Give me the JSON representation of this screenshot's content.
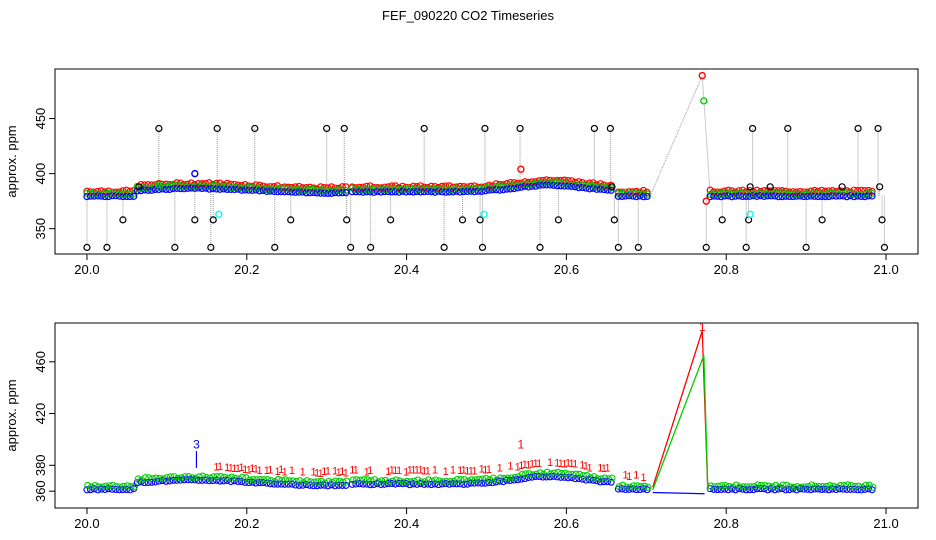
{
  "figure": {
    "title": "FEF_090220  CO2 Timeseries"
  },
  "chart_data": [
    {
      "type": "scatter",
      "title": "",
      "xlabel": "",
      "ylabel": "approx. ppm",
      "xlim": [
        19.96,
        21.04
      ],
      "ylim": [
        327,
        495
      ],
      "xticks": [
        20.0,
        20.2,
        20.4,
        20.6,
        20.8,
        21.0
      ],
      "xtick_labels": [
        "20.0",
        "20.2",
        "20.4",
        "20.6",
        "20.8",
        "21.0"
      ],
      "yticks": [
        350,
        400,
        450
      ],
      "ytick_labels": [
        "350",
        "400",
        "450"
      ],
      "grid": false,
      "series": [
        {
          "color": "#000000",
          "marker": "circle",
          "style": "points+gray-lines",
          "role": "black",
          "spikes": [
            [
              20.0,
              333
            ],
            [
              20.025,
              333
            ],
            [
              20.045,
              358
            ],
            [
              20.065,
              388
            ],
            [
              20.09,
              441
            ],
            [
              20.11,
              333
            ],
            [
              20.135,
              358
            ],
            [
              20.155,
              333
            ],
            [
              20.158,
              358
            ],
            [
              20.163,
              441
            ],
            [
              20.21,
              441
            ],
            [
              20.235,
              333
            ],
            [
              20.255,
              358
            ],
            [
              20.3,
              441
            ],
            [
              20.322,
              441
            ],
            [
              20.325,
              358
            ],
            [
              20.33,
              333
            ],
            [
              20.355,
              333
            ],
            [
              20.38,
              358
            ],
            [
              20.422,
              441
            ],
            [
              20.447,
              333
            ],
            [
              20.47,
              358
            ],
            [
              20.492,
              358
            ],
            [
              20.495,
              333
            ],
            [
              20.498,
              441
            ],
            [
              20.542,
              441
            ],
            [
              20.567,
              333
            ],
            [
              20.59,
              358
            ],
            [
              20.635,
              441
            ],
            [
              20.655,
              441
            ],
            [
              20.657,
              388
            ],
            [
              20.66,
              358
            ],
            [
              20.665,
              333
            ],
            [
              20.69,
              333
            ],
            [
              20.775,
              333
            ],
            [
              20.795,
              358
            ],
            [
              20.825,
              333
            ],
            [
              20.828,
              358
            ],
            [
              20.83,
              388
            ],
            [
              20.833,
              441
            ],
            [
              20.855,
              388
            ],
            [
              20.877,
              441
            ],
            [
              20.9,
              333
            ],
            [
              20.92,
              358
            ],
            [
              20.945,
              388
            ],
            [
              20.965,
              441
            ],
            [
              20.99,
              441
            ],
            [
              20.992,
              388
            ],
            [
              20.995,
              358
            ],
            [
              20.998,
              333
            ]
          ]
        },
        {
          "color": "#ff0000",
          "marker": "circle",
          "style": "points",
          "role": "red",
          "peaks": [
            [
              20.543,
              404
            ],
            [
              20.77,
              489
            ],
            [
              20.775,
              375
            ]
          ]
        },
        {
          "color": "#00cc00",
          "marker": "circle",
          "style": "points",
          "role": "green",
          "peaks": [
            [
              20.09,
              390
            ],
            [
              20.772,
              466
            ]
          ]
        },
        {
          "color": "#0000ff",
          "marker": "circle",
          "style": "points",
          "role": "blue",
          "peaks": [
            [
              20.135,
              400
            ]
          ]
        },
        {
          "color": "#00ffff",
          "marker": "circle",
          "style": "points",
          "role": "cyan",
          "peaks": [
            [
              20.165,
              363
            ],
            [
              20.497,
              363
            ],
            [
              20.83,
              363
            ]
          ]
        }
      ]
    },
    {
      "type": "line",
      "title": "",
      "xlabel": "",
      "ylabel": "approx. ppm",
      "xlim": [
        19.96,
        21.04
      ],
      "ylim": [
        347,
        490
      ],
      "xticks": [
        20.0,
        20.2,
        20.4,
        20.6,
        20.8,
        21.0
      ],
      "xtick_labels": [
        "20.0",
        "20.2",
        "20.4",
        "20.6",
        "20.8",
        "21.0"
      ],
      "yticks": [
        360,
        380,
        420,
        460
      ],
      "ytick_labels": [
        "360",
        "380",
        "420",
        "460"
      ],
      "grid": false,
      "series": [
        {
          "color": "#ff0000",
          "marker": "1",
          "style": "lines+symbols",
          "spike": [
            [
              20.708,
              363
            ],
            [
              20.77,
              484
            ],
            [
              20.777,
              360
            ]
          ],
          "label_points": [
            [
              20.543,
              393
            ],
            [
              20.77,
              484
            ]
          ]
        },
        {
          "color": "#00cc00",
          "marker": "2",
          "style": "lines+symbols",
          "spike": [
            [
              20.708,
              361
            ],
            [
              20.772,
              465
            ],
            [
              20.777,
              360
            ]
          ]
        },
        {
          "color": "#0000ff",
          "marker": "3",
          "style": "lines+symbols",
          "spike": [
            [
              20.708,
              359
            ],
            [
              20.773,
              358
            ]
          ],
          "label_points": [
            [
              20.135,
              375
            ],
            [
              20.137,
              393
            ]
          ]
        }
      ],
      "annotations": [
        "1",
        "1",
        "3"
      ]
    }
  ]
}
